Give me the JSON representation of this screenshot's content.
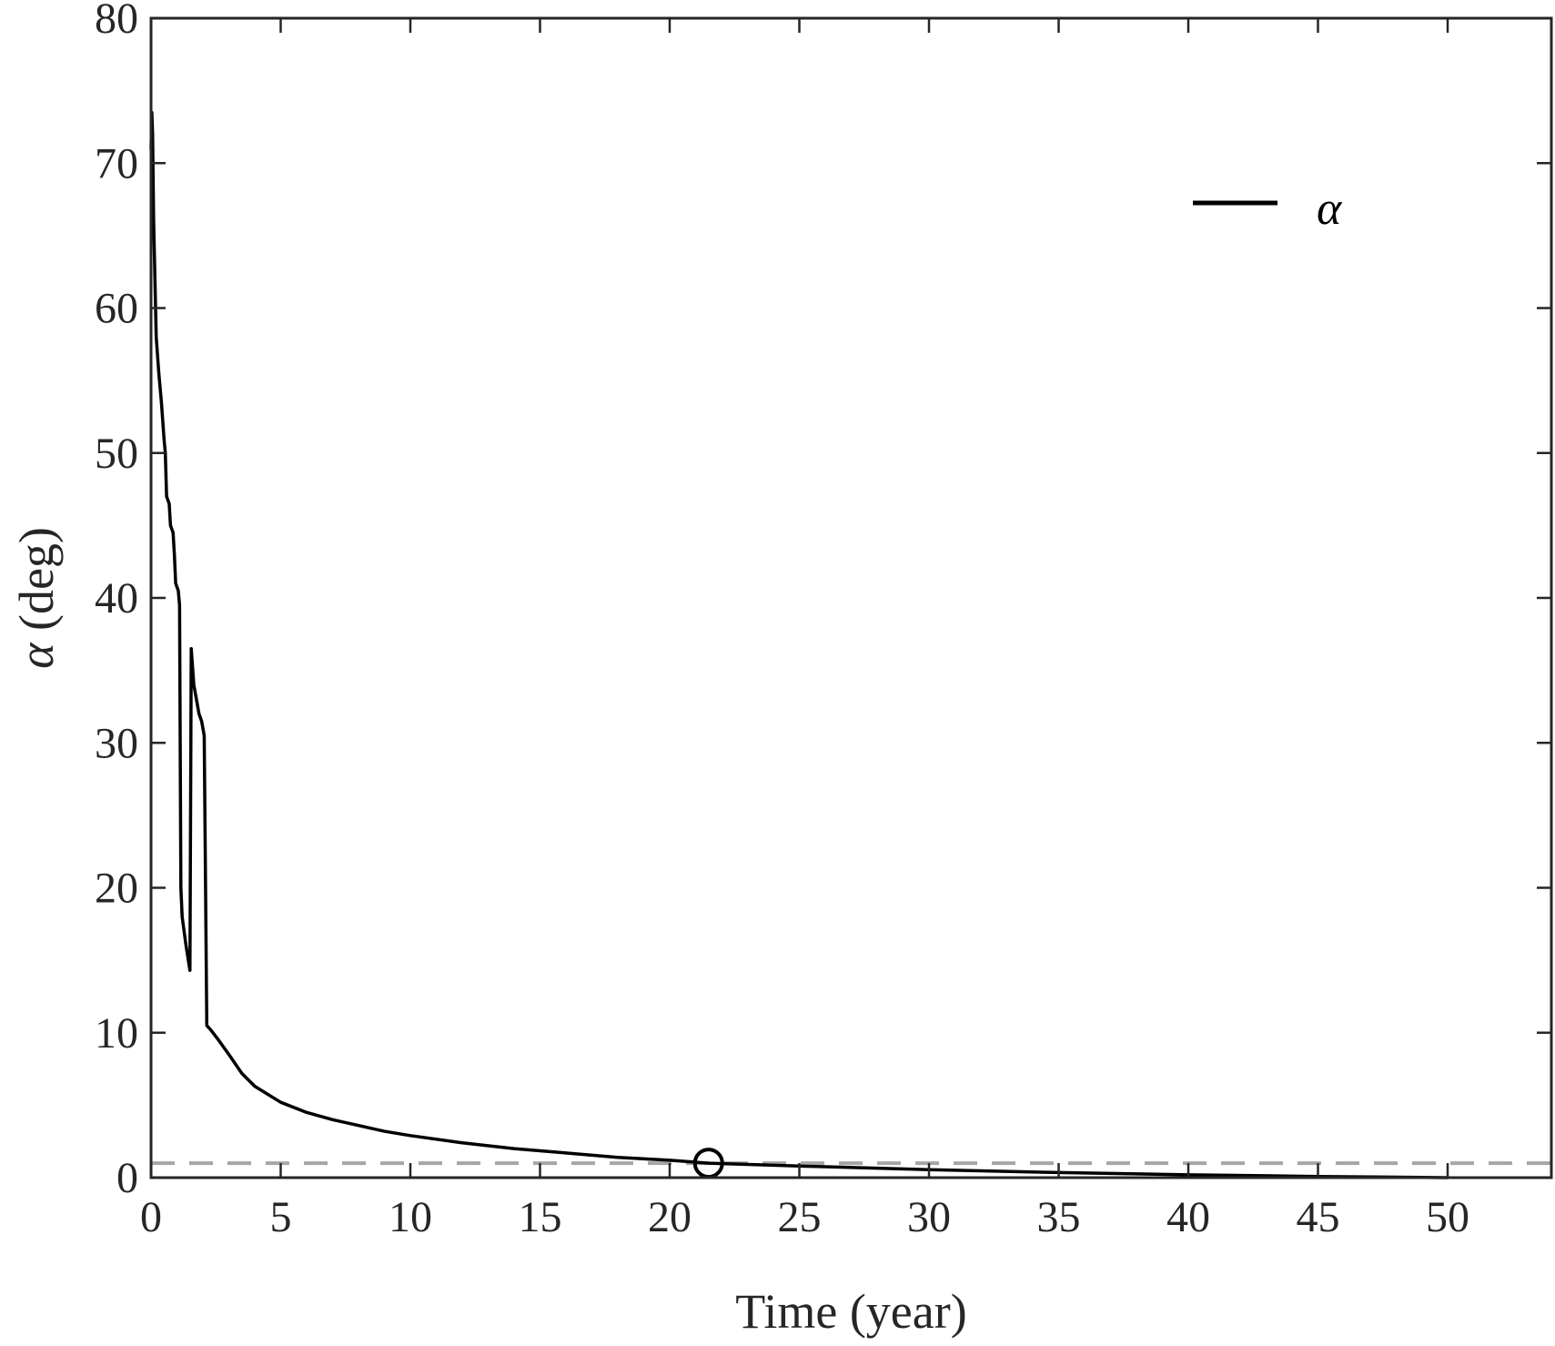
{
  "chart_data": {
    "type": "line",
    "xlabel": "Time (year)",
    "ylabel_symbol": "α",
    "ylabel_unit": "(deg)",
    "xlim": [
      0,
      54
    ],
    "ylim": [
      0,
      80
    ],
    "xticks": [
      0,
      5,
      10,
      15,
      20,
      25,
      30,
      35,
      40,
      45,
      50
    ],
    "yticks": [
      0,
      10,
      20,
      30,
      40,
      50,
      60,
      70,
      80
    ],
    "xtick_labels": [
      "0",
      "5",
      "10",
      "15",
      "20",
      "25",
      "30",
      "35",
      "40",
      "45",
      "50"
    ],
    "ytick_labels": [
      "0",
      "10",
      "20",
      "30",
      "40",
      "50",
      "60",
      "70",
      "80"
    ],
    "grid": false,
    "legend": {
      "position": "top-right",
      "entries": [
        {
          "label": "α",
          "color": "#000000",
          "style": "solid"
        }
      ]
    },
    "series": [
      {
        "name": "α",
        "color": "#000000",
        "style": "solid",
        "points": [
          [
            0.0,
            71.0
          ],
          [
            0.03,
            73.5
          ],
          [
            0.06,
            72.0
          ],
          [
            0.1,
            66.0
          ],
          [
            0.15,
            62.0
          ],
          [
            0.2,
            58.0
          ],
          [
            0.3,
            55.5
          ],
          [
            0.4,
            53.5
          ],
          [
            0.5,
            51.0
          ],
          [
            0.55,
            50.0
          ],
          [
            0.6,
            47.0
          ],
          [
            0.7,
            46.5
          ],
          [
            0.75,
            45.0
          ],
          [
            0.85,
            44.5
          ],
          [
            0.9,
            43.0
          ],
          [
            0.95,
            41.0
          ],
          [
            1.05,
            40.5
          ],
          [
            1.1,
            39.5
          ],
          [
            1.15,
            20.0
          ],
          [
            1.2,
            18.0
          ],
          [
            1.35,
            16.0
          ],
          [
            1.5,
            14.3
          ],
          [
            1.55,
            36.5
          ],
          [
            1.65,
            34.0
          ],
          [
            1.75,
            33.0
          ],
          [
            1.85,
            32.0
          ],
          [
            1.95,
            31.5
          ],
          [
            2.05,
            30.5
          ],
          [
            2.15,
            10.5
          ],
          [
            2.3,
            10.2
          ],
          [
            2.6,
            9.5
          ],
          [
            3.0,
            8.5
          ],
          [
            3.5,
            7.2
          ],
          [
            4.0,
            6.3
          ],
          [
            5.0,
            5.2
          ],
          [
            6.0,
            4.5
          ],
          [
            7.0,
            4.0
          ],
          [
            8.0,
            3.6
          ],
          [
            9.0,
            3.2
          ],
          [
            10.0,
            2.9
          ],
          [
            12.0,
            2.4
          ],
          [
            14.0,
            2.0
          ],
          [
            16.0,
            1.7
          ],
          [
            18.0,
            1.4
          ],
          [
            20.0,
            1.2
          ],
          [
            21.5,
            1.0
          ],
          [
            25.0,
            0.8
          ],
          [
            30.0,
            0.55
          ],
          [
            35.0,
            0.35
          ],
          [
            40.0,
            0.2
          ],
          [
            45.0,
            0.08
          ],
          [
            50.0,
            0.0
          ]
        ]
      }
    ],
    "threshold": {
      "y": 1.0,
      "color": "#a6a6a6",
      "style": "dashed"
    },
    "marker": {
      "x": 21.5,
      "y": 1.0,
      "shape": "circle",
      "color": "#000000"
    }
  }
}
